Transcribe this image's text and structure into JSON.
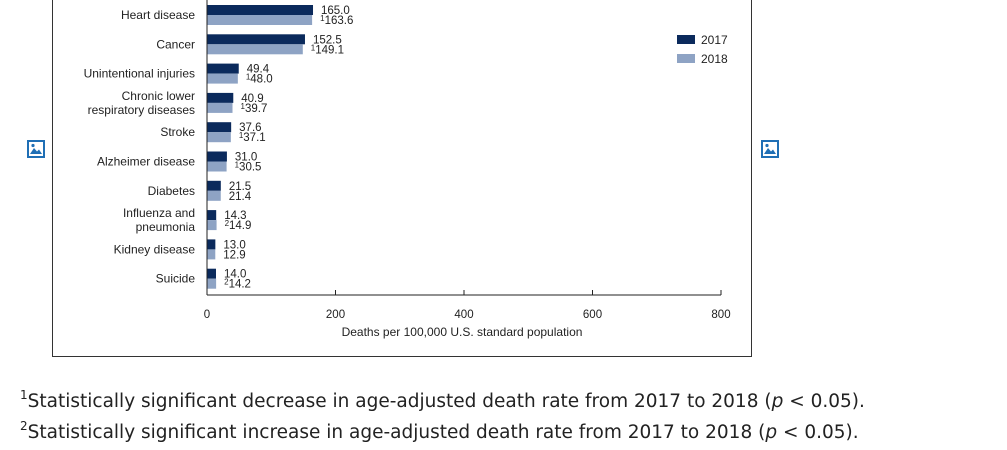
{
  "chart_data": {
    "type": "bar",
    "orientation": "horizontal",
    "categories": [
      [
        "Heart disease"
      ],
      [
        "Cancer"
      ],
      [
        "Unintentional injuries"
      ],
      [
        "Chronic lower",
        "respiratory diseases"
      ],
      [
        "Stroke"
      ],
      [
        "Alzheimer disease"
      ],
      [
        "Diabetes"
      ],
      [
        "Influenza and",
        "pneumonia"
      ],
      [
        "Kidney disease"
      ],
      [
        "Suicide"
      ]
    ],
    "series": [
      {
        "name": "2017",
        "color": "#0b2a5c",
        "values": [
          165.0,
          152.5,
          49.4,
          40.9,
          37.6,
          31.0,
          21.5,
          14.3,
          13.0,
          14.0
        ],
        "labels": [
          "165.0",
          "152.5",
          "49.4",
          "40.9",
          "37.6",
          "31.0",
          "21.5",
          "14.3",
          "13.0",
          "14.0"
        ],
        "marks": [
          "",
          "",
          "",
          "",
          "",
          "",
          "",
          "",
          "",
          ""
        ]
      },
      {
        "name": "2018",
        "color": "#8ea3c4",
        "values": [
          163.6,
          149.1,
          48.0,
          39.7,
          37.1,
          30.5,
          21.4,
          14.9,
          12.9,
          14.2
        ],
        "labels": [
          "163.6",
          "149.1",
          "48.0",
          "39.7",
          "37.1",
          "30.5",
          "21.4",
          "14.9",
          "12.9",
          "14.2"
        ],
        "marks": [
          "1",
          "1",
          "1",
          "1",
          "1",
          "1",
          "",
          "2",
          "",
          "2"
        ]
      }
    ],
    "xlim": [
      0,
      800
    ],
    "xticks": [
      0,
      200,
      400,
      600,
      800
    ],
    "xlabel": "Deaths per 100,000 U.S. standard population",
    "legend": "right",
    "grid": false
  },
  "icons": {
    "left": "image-icon",
    "right": "image-icon"
  },
  "footnotes": [
    {
      "mark": "1",
      "before": "Statistically significant decrease in age-adjusted death rate from 2017 to 2018 (",
      "italic": "p",
      "after": " < 0.05)."
    },
    {
      "mark": "2",
      "before": "Statistically significant increase in age-adjusted death rate from 2017 to 2018 (",
      "italic": "p",
      "after": " < 0.05)."
    }
  ]
}
